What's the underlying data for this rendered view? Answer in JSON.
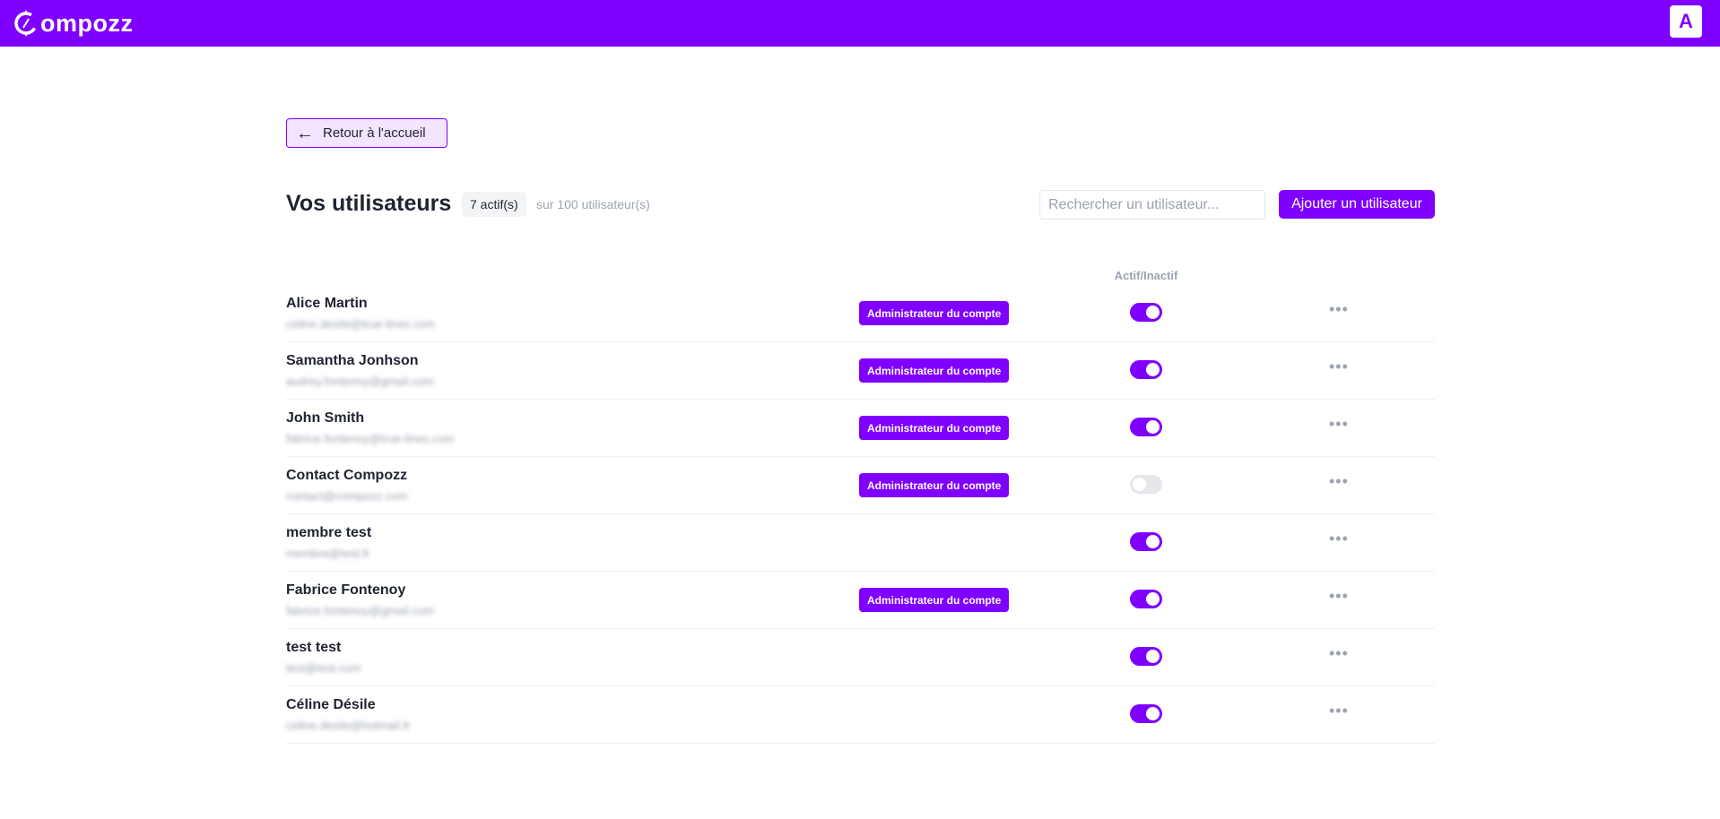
{
  "colors": {
    "brand": "#8000ff",
    "badge_bg": "#f3e4ff"
  },
  "header": {
    "logo_text": "ompozz",
    "avatar_letter": "A"
  },
  "back_button": {
    "label": "Retour à l'accueil",
    "icon": "arrow-left-icon"
  },
  "page": {
    "title": "Vos utilisateurs",
    "active_count": "7 actif(s)",
    "total": "sur 100 utilisateur(s)"
  },
  "search": {
    "placeholder": "Rechercher un utilisateur...",
    "value": ""
  },
  "add_button": {
    "label": "Ajouter un utilisateur"
  },
  "table": {
    "status_header": "Actif/Inactif"
  },
  "users": [
    {
      "name": "Alice Martin",
      "email": "celine.desile@true-lines.com",
      "role": "Administrateur du compte",
      "active": true
    },
    {
      "name": "Samantha Jonhson",
      "email": "audrey.fontenoy@gmail.com",
      "role": "Administrateur du compte",
      "active": true
    },
    {
      "name": "John Smith",
      "email": "fabrice.fontenoy@true-lines.com",
      "role": "Administrateur du compte",
      "active": true
    },
    {
      "name": "Contact Compozz",
      "email": "contact@compozz.com",
      "role": "Administrateur du compte",
      "active": false
    },
    {
      "name": "membre test",
      "email": "membre@test.fr",
      "role": "",
      "active": true
    },
    {
      "name": "Fabrice Fontenoy",
      "email": "fabrice.fontenoy@gmail.com",
      "role": "Administrateur du compte",
      "active": true
    },
    {
      "name": "test test",
      "email": "test@test.com",
      "role": "",
      "active": true
    },
    {
      "name": "Céline Désile",
      "email": "celine.desile@hotmail.fr",
      "role": "",
      "active": true
    }
  ],
  "row_menu_icon": "more-horizontal-icon"
}
